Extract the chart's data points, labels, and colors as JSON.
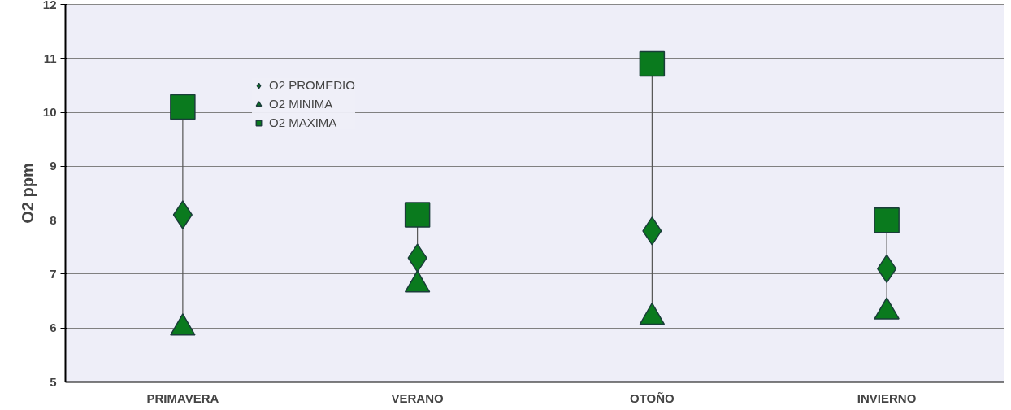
{
  "chart_data": {
    "type": "scatter",
    "ylabel": "O2 ppm",
    "categories": [
      "PRIMAVERA",
      "VERANO",
      "OTOÑO",
      "INVIERNO"
    ],
    "series": [
      {
        "name": "O2 PROMEDIO",
        "color": "#0a7a1e",
        "marker": "diamond",
        "values": [
          8.1,
          7.3,
          7.8,
          7.1
        ]
      },
      {
        "name": "O2 MINIMA",
        "color": "#0a7a1e",
        "marker": "triangle",
        "values": [
          6.0,
          6.8,
          6.2,
          6.3
        ]
      },
      {
        "name": "O2 MAXIMA",
        "color": "#0a7a1e",
        "marker": "square",
        "values": [
          10.1,
          8.1,
          10.9,
          8.0
        ]
      }
    ],
    "ylim": [
      5,
      12
    ],
    "yticks": [
      5,
      6,
      7,
      8,
      9,
      10,
      11,
      12
    ],
    "grid": "y",
    "legend": "top left"
  }
}
